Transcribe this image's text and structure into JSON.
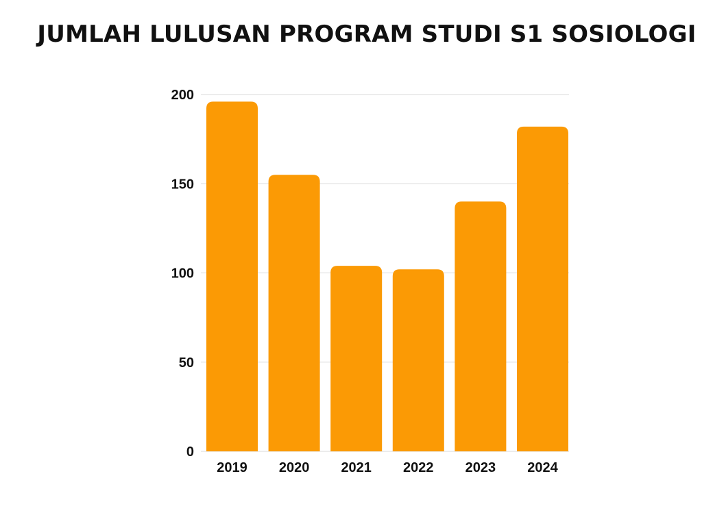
{
  "chart_data": {
    "type": "bar",
    "title": "JUMLAH LULUSAN PROGRAM STUDI S1 SOSIOLOGI",
    "categories": [
      "2019",
      "2020",
      "2021",
      "2022",
      "2023",
      "2024"
    ],
    "values": [
      196,
      155,
      104,
      102,
      140,
      182
    ],
    "ylim": [
      0,
      200
    ],
    "yticks": [
      0,
      50,
      100,
      150,
      200
    ],
    "xlabel": "",
    "ylabel": "",
    "grid": true,
    "legend": "none",
    "bar_color": "#FB9A05",
    "grid_color": "#D9D9D9"
  }
}
